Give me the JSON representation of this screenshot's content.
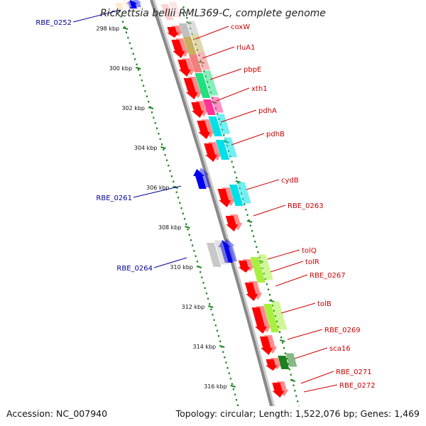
{
  "title": "Rickettsia bellii RML369-C, complete genome",
  "footer": {
    "accession": "Accession: NC_007940",
    "topology": "Topology: circular; Length: 1,522,076 bp; Genes: 1,469"
  },
  "colors": {
    "forward_label": "#cc0000",
    "reverse_label": "#000099",
    "backbone": "#888888",
    "ticks": "#228822"
  },
  "kbp_ticks": [
    "298 kbp",
    "300 kbp",
    "302 kbp",
    "304 kbp",
    "306 kbp",
    "308 kbp",
    "310 kbp",
    "312 kbp",
    "314 kbp",
    "316 kbp"
  ],
  "forward_genes": [
    {
      "label": "coxW",
      "color": "#c0c0c0"
    },
    {
      "label": "rluA1",
      "color": "#c8b060"
    },
    {
      "label": "pbpE",
      "color": "#f08080"
    },
    {
      "label": "xth1",
      "color": "#20e080"
    },
    {
      "label": "pdhA",
      "color": "#ff3399"
    },
    {
      "label": "pdhB",
      "color": "#00e0e8"
    },
    {
      "label": "cydB",
      "color": "#00e0e8"
    },
    {
      "label": "RBE_0263",
      "color": "#ff0000"
    },
    {
      "label": "tolQ",
      "color": "#ff0000"
    },
    {
      "label": "tolR",
      "color": "#a8f040"
    },
    {
      "label": "RBE_0267",
      "color": "#ff0000"
    },
    {
      "label": "tolB",
      "color": "#a8f040"
    },
    {
      "label": "RBE_0269",
      "color": "#ff0000"
    },
    {
      "label": "sca16",
      "color": "#ff0000"
    },
    {
      "label": "RBE_0271",
      "color": "#208020"
    },
    {
      "label": "RBE_0272",
      "color": "#ff0000"
    }
  ],
  "reverse_genes": [
    {
      "label": "RBE_0252",
      "color": "#0000ee"
    },
    {
      "label": "RBE_0261",
      "color": "#0000ee"
    },
    {
      "label": "RBE_0264",
      "color": "#0000ee"
    }
  ]
}
